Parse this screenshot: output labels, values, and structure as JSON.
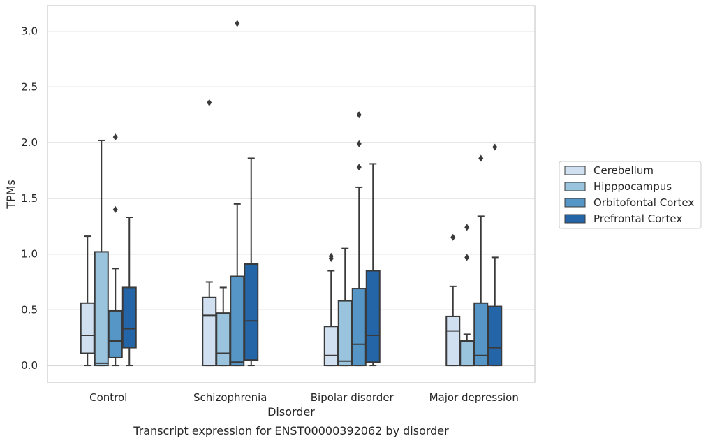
{
  "chart_data": {
    "type": "boxplot",
    "xlabel": "Disorder",
    "ylabel": "TPMs",
    "caption": "Transcript expression for ENST00000392062 by disorder",
    "ylim": [
      -0.15,
      3.23
    ],
    "yticks": [
      "0.0",
      "0.5",
      "1.0",
      "1.5",
      "2.0",
      "2.5",
      "3.0"
    ],
    "grid": "horizontal",
    "legend_position": "right",
    "categories": [
      "Control",
      "Schizophrenia",
      "Bipolar disorder",
      "Major depression"
    ],
    "series": [
      {
        "name": "Cerebellum",
        "color": "#d0e0f0",
        "boxes": [
          {
            "q1": 0.11,
            "median": 0.27,
            "q3": 0.56,
            "whisker_low": 0.0,
            "whisker_high": 1.16,
            "outliers": []
          },
          {
            "q1": 0.0,
            "median": 0.45,
            "q3": 0.61,
            "whisker_low": 0.0,
            "whisker_high": 0.75,
            "outliers": [
              2.36
            ]
          },
          {
            "q1": 0.0,
            "median": 0.09,
            "q3": 0.35,
            "whisker_low": 0.0,
            "whisker_high": 0.85,
            "outliers": [
              0.96,
              0.98
            ]
          },
          {
            "q1": 0.0,
            "median": 0.31,
            "q3": 0.44,
            "whisker_low": 0.0,
            "whisker_high": 0.71,
            "outliers": [
              1.15
            ]
          }
        ]
      },
      {
        "name": "Hipppocampus",
        "color": "#9ac4de",
        "boxes": [
          {
            "q1": 0.0,
            "median": 0.02,
            "q3": 1.02,
            "whisker_low": 0.0,
            "whisker_high": 2.02,
            "outliers": []
          },
          {
            "q1": 0.0,
            "median": 0.11,
            "q3": 0.47,
            "whisker_low": 0.0,
            "whisker_high": 0.7,
            "outliers": []
          },
          {
            "q1": 0.0,
            "median": 0.04,
            "q3": 0.58,
            "whisker_low": 0.0,
            "whisker_high": 1.05,
            "outliers": []
          },
          {
            "q1": 0.0,
            "median": 0.0,
            "q3": 0.22,
            "whisker_low": 0.0,
            "whisker_high": 0.28,
            "outliers": [
              0.97,
              1.24
            ]
          }
        ]
      },
      {
        "name": "Orbitofontal Cortex",
        "color": "#5596c6",
        "boxes": [
          {
            "q1": 0.07,
            "median": 0.22,
            "q3": 0.49,
            "whisker_low": 0.0,
            "whisker_high": 0.87,
            "outliers": [
              1.4,
              2.05
            ]
          },
          {
            "q1": 0.0,
            "median": 0.03,
            "q3": 0.8,
            "whisker_low": 0.0,
            "whisker_high": 1.45,
            "outliers": [
              3.07
            ]
          },
          {
            "q1": 0.0,
            "median": 0.19,
            "q3": 0.69,
            "whisker_low": 0.0,
            "whisker_high": 1.6,
            "outliers": [
              1.78,
              1.99,
              2.25
            ]
          },
          {
            "q1": 0.0,
            "median": 0.09,
            "q3": 0.56,
            "whisker_low": 0.0,
            "whisker_high": 1.34,
            "outliers": [
              1.86
            ]
          }
        ]
      },
      {
        "name": "Prefrontal Cortex",
        "color": "#2465a8",
        "boxes": [
          {
            "q1": 0.16,
            "median": 0.33,
            "q3": 0.7,
            "whisker_low": 0.0,
            "whisker_high": 1.33,
            "outliers": []
          },
          {
            "q1": 0.05,
            "median": 0.4,
            "q3": 0.91,
            "whisker_low": 0.0,
            "whisker_high": 1.86,
            "outliers": []
          },
          {
            "q1": 0.03,
            "median": 0.27,
            "q3": 0.85,
            "whisker_low": 0.0,
            "whisker_high": 1.81,
            "outliers": []
          },
          {
            "q1": 0.0,
            "median": 0.16,
            "q3": 0.53,
            "whisker_low": 0.0,
            "whisker_high": 0.97,
            "outliers": [
              1.96
            ]
          }
        ]
      }
    ]
  }
}
